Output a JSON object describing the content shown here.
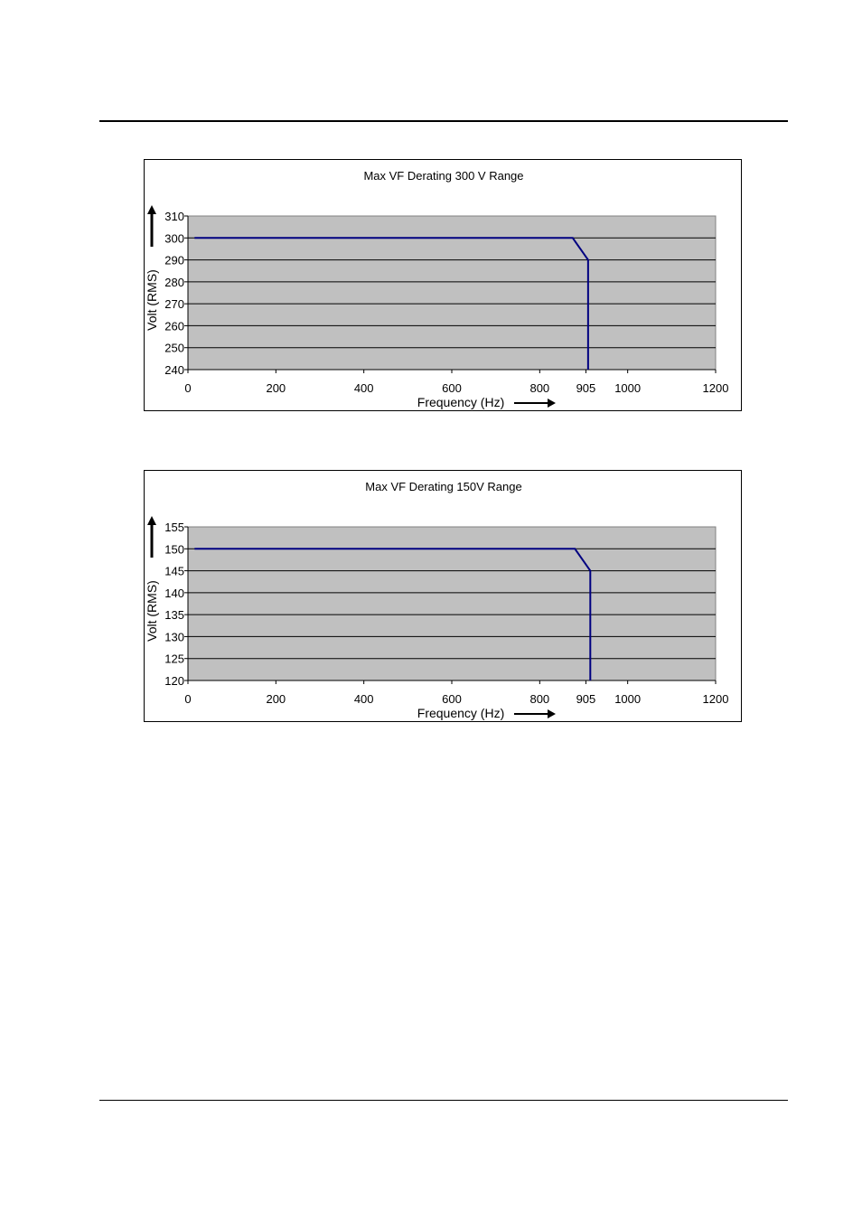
{
  "chart_data": [
    {
      "type": "line",
      "title": "Max VF Derating 300 V Range",
      "xlabel": "Frequency (Hz)",
      "ylabel": "Volt (RMS)",
      "xlim": [
        0,
        1200
      ],
      "ylim": [
        240,
        310
      ],
      "x_ticks": [
        0,
        200,
        400,
        600,
        800,
        905,
        1000,
        1200
      ],
      "y_ticks": [
        240,
        250,
        260,
        270,
        280,
        290,
        300,
        310
      ],
      "grid": true,
      "plot_background": "#c0c0c0",
      "series_color": "#000080",
      "series": [
        {
          "x": [
            15,
            875,
            910,
            910
          ],
          "y": [
            300,
            300,
            290,
            240
          ]
        }
      ]
    },
    {
      "type": "line",
      "title": "Max VF Derating 150V Range",
      "xlabel": "Frequency (Hz)",
      "ylabel": "Volt (RMS)",
      "xlim": [
        0,
        1200
      ],
      "ylim": [
        120,
        155
      ],
      "x_ticks": [
        0,
        200,
        400,
        600,
        800,
        905,
        1000,
        1200
      ],
      "y_ticks": [
        120,
        125,
        130,
        135,
        140,
        145,
        150,
        155
      ],
      "grid": true,
      "plot_background": "#c0c0c0",
      "series_color": "#000080",
      "series": [
        {
          "x": [
            15,
            880,
            915,
            915
          ],
          "y": [
            150,
            150,
            145,
            120
          ]
        }
      ]
    }
  ]
}
